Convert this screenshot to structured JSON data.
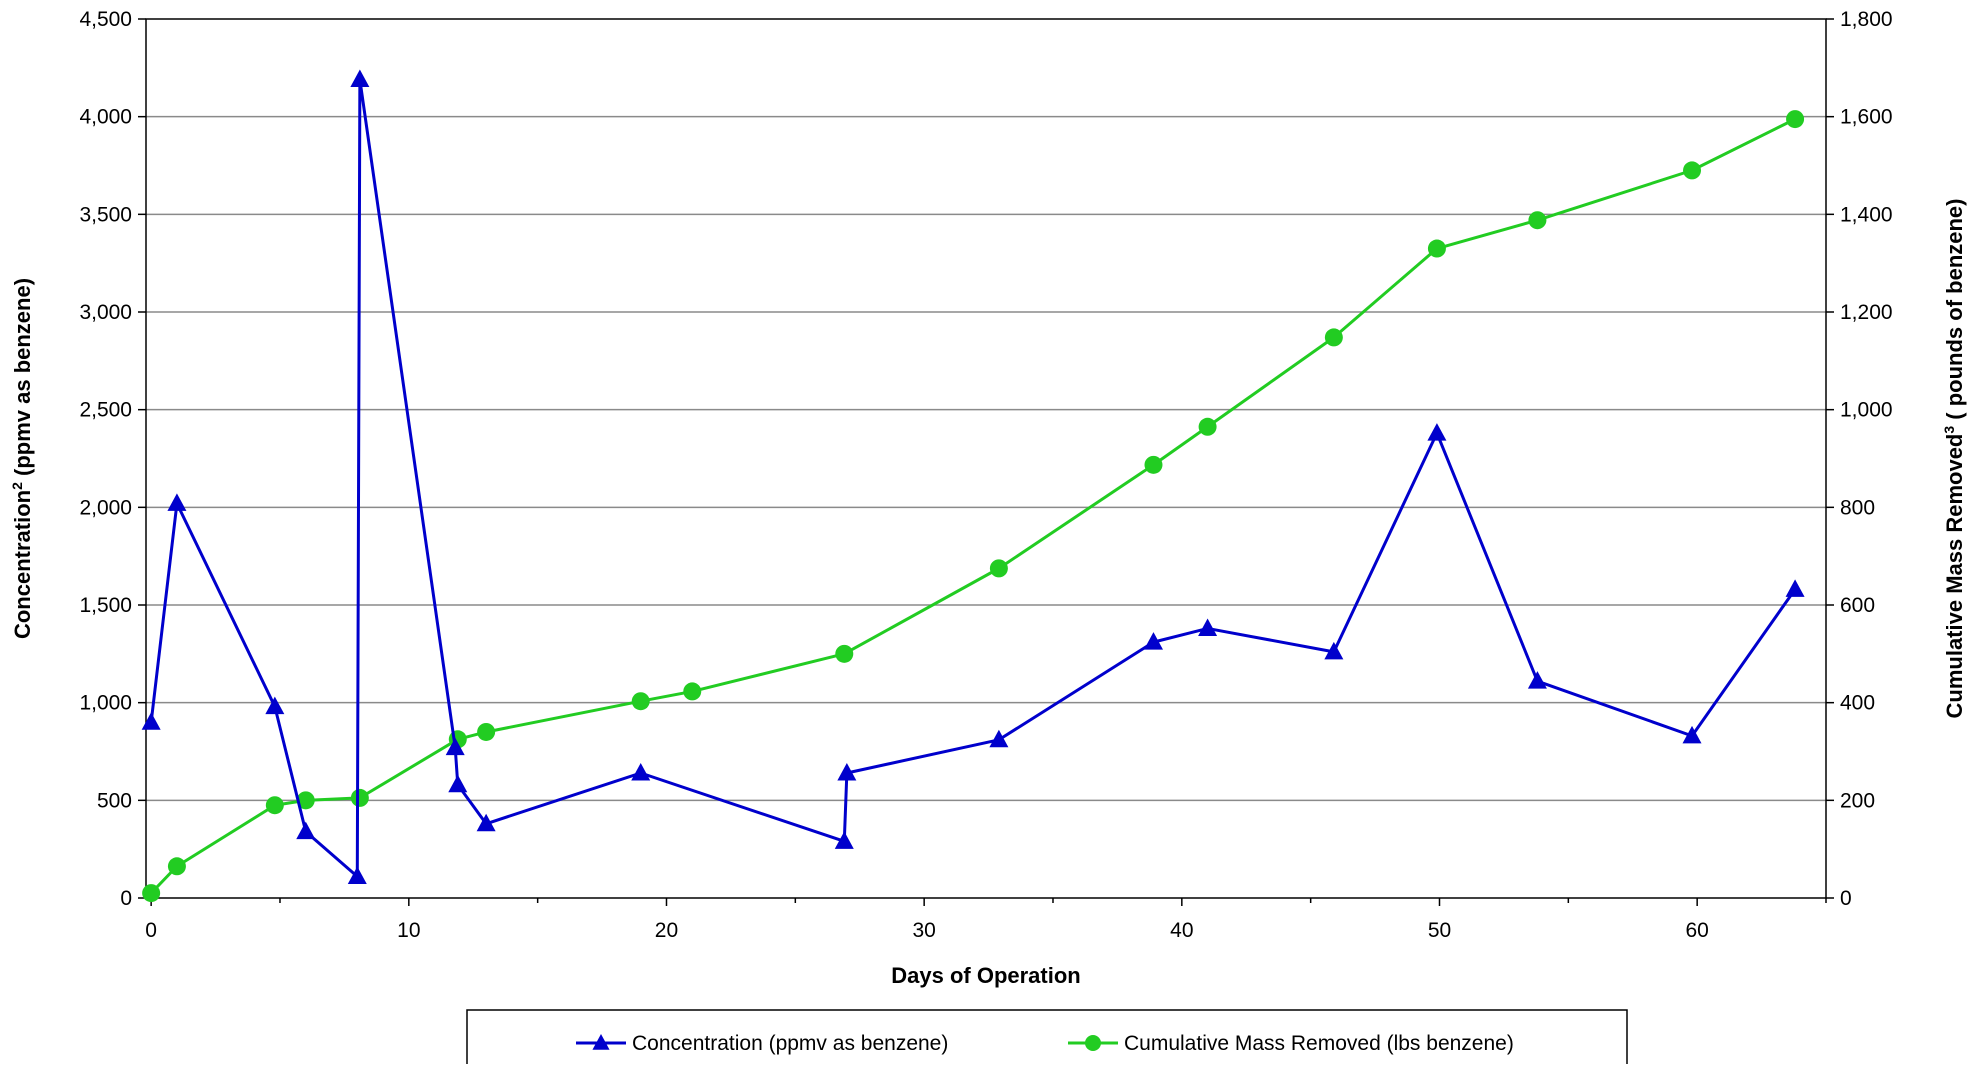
{
  "chart_data": {
    "type": "line",
    "title": "",
    "xlabel": "Days of Operation",
    "ylabel_left_main": "Concentration",
    "ylabel_left_sup": "2",
    "ylabel_left_rest": " (ppmv as benzene)",
    "ylabel_right_main": "Cumulative Mass Removed",
    "ylabel_right_sup": "3",
    "ylabel_right_rest": " ( pounds of benzene)",
    "xlim": [
      -0.2,
      65
    ],
    "ylim_left": [
      0,
      4500
    ],
    "ylim_right": [
      0,
      1800
    ],
    "x_ticks": [
      0,
      10,
      20,
      30,
      40,
      50,
      60
    ],
    "y_left_ticks": [
      0,
      500,
      1000,
      1500,
      2000,
      2500,
      3000,
      3500,
      4000,
      4500
    ],
    "y_left_tick_labels": [
      "0",
      "500",
      "1,000",
      "1,500",
      "2,000",
      "2,500",
      "3,000",
      "3,500",
      "4,000",
      "4,500"
    ],
    "y_right_ticks": [
      0,
      200,
      400,
      600,
      800,
      1000,
      1200,
      1400,
      1600,
      1800
    ],
    "y_right_tick_labels": [
      "0",
      "200",
      "400",
      "600",
      "800",
      "1,000",
      "1,200",
      "1,400",
      "1,600",
      "1,800"
    ],
    "grid": "horizontal",
    "legend_position": "bottom-center",
    "series": [
      {
        "name": "Concentration (ppmv as benzene)",
        "axis": "left",
        "color": "#0000CC",
        "marker": "triangle",
        "x": [
          0,
          1,
          4.8,
          6,
          8,
          8.1,
          11.8,
          11.9,
          13,
          19,
          26.9,
          27,
          32.9,
          38.9,
          41,
          45.9,
          49.9,
          53.8,
          59.8,
          63.8
        ],
        "y": [
          900,
          2020,
          980,
          340,
          110,
          4190,
          770,
          580,
          380,
          640,
          290,
          640,
          810,
          1310,
          1380,
          1260,
          2380,
          1110,
          830,
          1580
        ]
      },
      {
        "name": "Cumulative Mass Removed (lbs benzene)",
        "axis": "right",
        "color": "#22CC22",
        "marker": "circle",
        "x": [
          0,
          1,
          4.8,
          6,
          8.1,
          11.9,
          13,
          19,
          21,
          26.9,
          32.9,
          38.9,
          41,
          45.9,
          49.9,
          53.8,
          59.8,
          63.8
        ],
        "y": [
          10,
          65,
          190,
          200,
          205,
          325,
          340,
          403,
          423,
          500,
          675,
          887,
          965,
          1148,
          1330,
          1388,
          1490,
          1595
        ]
      }
    ]
  }
}
